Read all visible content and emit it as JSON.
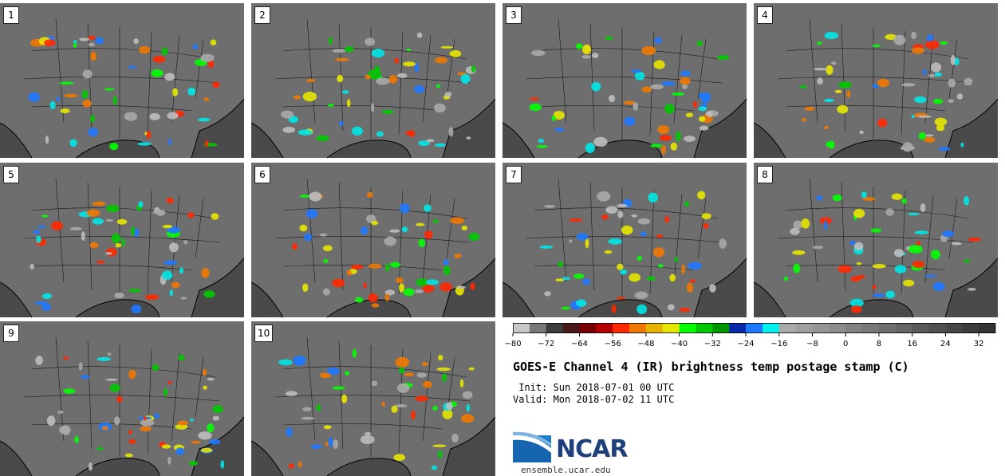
{
  "stamps": [
    {
      "label": "1"
    },
    {
      "label": "2"
    },
    {
      "label": "3"
    },
    {
      "label": "4"
    },
    {
      "label": "5"
    },
    {
      "label": "6"
    },
    {
      "label": "7"
    },
    {
      "label": "8"
    },
    {
      "label": "9"
    },
    {
      "label": "10"
    }
  ],
  "colorbar": {
    "colors": [
      "#c8c8c8",
      "#787878",
      "#3c3c3c",
      "#4a1a1a",
      "#7a0000",
      "#b40000",
      "#ff2800",
      "#f07800",
      "#e6b400",
      "#e6e600",
      "#00ff00",
      "#00c800",
      "#009600",
      "#0a28aa",
      "#1e78ff",
      "#00f0f0",
      "#aaaaaa",
      "#a0a0a0",
      "#969696",
      "#8c8c8c",
      "#828282",
      "#787878",
      "#6e6e6e",
      "#646464",
      "#5a5a5a",
      "#505050",
      "#464646",
      "#3c3c3c",
      "#323232"
    ],
    "min": -80,
    "step": 4,
    "ticks": [
      "-80",
      "-72",
      "-64",
      "-56",
      "-48",
      "-40",
      "-32",
      "-24",
      "-16",
      "-8",
      "0",
      "8",
      "16",
      "24",
      "32"
    ]
  },
  "title": "GOES-E Channel 4 (IR) brightness temp postage stamp (C)",
  "init_line": " Init: Sun 2018-07-01 00 UTC",
  "valid_line": "Valid: Mon 2018-07-02 11 UTC",
  "logo_text": "NCAR",
  "url": "ensemble.ucar.edu"
}
